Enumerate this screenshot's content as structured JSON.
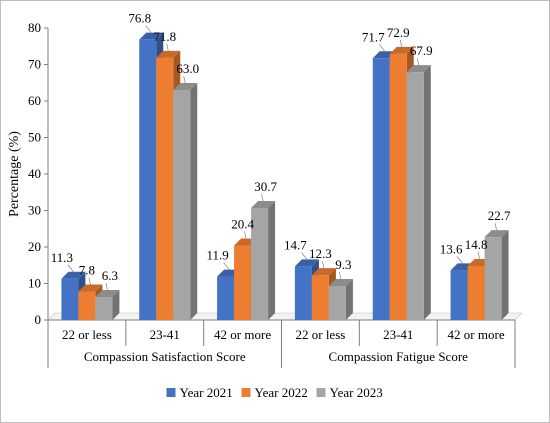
{
  "chart_data": {
    "type": "bar",
    "ylabel": "Percentage (%)",
    "ylim": [
      0,
      80
    ],
    "yticks": [
      0,
      10,
      20,
      30,
      40,
      50,
      60,
      70,
      80
    ],
    "categories": [
      "22 or less",
      "23-41",
      "42 or more",
      "22 or less",
      "23-41",
      "42 or more"
    ],
    "groups": [
      {
        "label": "Compassion Satisfaction Score",
        "span": [
          0,
          2
        ]
      },
      {
        "label": "Compassion Fatigue Score",
        "span": [
          3,
          5
        ]
      }
    ],
    "series": [
      {
        "name": "Year 2021",
        "color": "#4472c4",
        "values": [
          11.3,
          76.8,
          11.9,
          14.7,
          71.7,
          13.6
        ],
        "labels": [
          "11.3",
          "76.8",
          "11.9",
          "14.7",
          "71.7",
          "13.6"
        ]
      },
      {
        "name": "Year 2022",
        "color": "#ed7d31",
        "values": [
          7.8,
          71.8,
          20.4,
          12.3,
          72.9,
          14.8
        ],
        "labels": [
          "7.8",
          "71.8",
          "20.4",
          "12.3",
          "72.9",
          "14.8"
        ]
      },
      {
        "name": "Year 2023",
        "color": "#a5a5a5",
        "values": [
          6.3,
          63.0,
          30.7,
          9.3,
          67.9,
          22.7
        ],
        "labels": [
          "6.3",
          "63.0",
          "30.7",
          "9.3",
          "67.9",
          "22.7"
        ]
      }
    ],
    "legend": "bottom",
    "grid": false,
    "style": "3d-bars"
  }
}
